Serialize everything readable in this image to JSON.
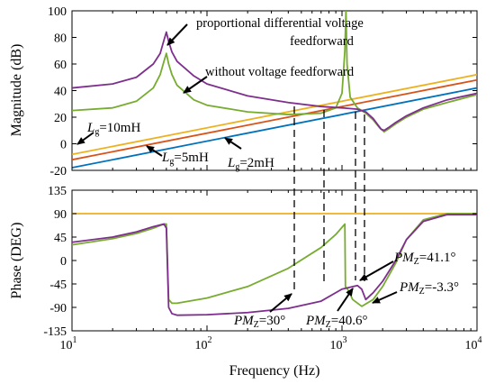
{
  "chart_data": [
    {
      "type": "line",
      "ylabel": "Magnitude (dB)",
      "x_scale": "log",
      "xlim": [
        10,
        10000
      ],
      "ylim": [
        -20,
        100
      ],
      "yticks": [
        "-20",
        "0",
        "20",
        "40",
        "60",
        "80",
        "100"
      ],
      "grid": false,
      "series": [
        {
          "color": "#7e2f8e",
          "points": [
            [
              10,
              42
            ],
            [
              20,
              45
            ],
            [
              30,
              50
            ],
            [
              40,
              60
            ],
            [
              45,
              68
            ],
            [
              48,
              78
            ],
            [
              50,
              84
            ],
            [
              52,
              77
            ],
            [
              55,
              69
            ],
            [
              60,
              62
            ],
            [
              80,
              51
            ],
            [
              100,
              45
            ],
            [
              200,
              36
            ],
            [
              400,
              31
            ],
            [
              700,
              28
            ],
            [
              1000,
              27
            ],
            [
              1300,
              26
            ],
            [
              1500,
              24
            ],
            [
              1700,
              19
            ],
            [
              1850,
              14
            ],
            [
              1950,
              11
            ],
            [
              2050,
              10
            ],
            [
              2200,
              12
            ],
            [
              2500,
              16
            ],
            [
              3000,
              21
            ],
            [
              4000,
              27
            ],
            [
              6000,
              33
            ],
            [
              10000,
              38
            ]
          ]
        },
        {
          "color": "#77ac30",
          "points": [
            [
              10,
              25
            ],
            [
              20,
              27
            ],
            [
              30,
              32
            ],
            [
              40,
              42
            ],
            [
              45,
              52
            ],
            [
              48,
              62
            ],
            [
              50,
              68
            ],
            [
              52,
              60
            ],
            [
              55,
              52
            ],
            [
              60,
              44
            ],
            [
              80,
              33
            ],
            [
              100,
              29
            ],
            [
              200,
              24
            ],
            [
              400,
              22
            ],
            [
              700,
              23
            ],
            [
              900,
              27
            ],
            [
              1000,
              38
            ],
            [
              1050,
              70
            ],
            [
              1070,
              100
            ],
            [
              1090,
              60
            ],
            [
              1150,
              35
            ],
            [
              1300,
              27
            ],
            [
              1500,
              23
            ],
            [
              1700,
              18
            ],
            [
              1900,
              12
            ],
            [
              2050,
              9
            ],
            [
              2200,
              11
            ],
            [
              2500,
              15
            ],
            [
              3000,
              20
            ],
            [
              4000,
              26
            ],
            [
              6000,
              31
            ],
            [
              10000,
              37
            ]
          ]
        },
        {
          "color": "#edb120",
          "points": [
            [
              10,
              -8
            ],
            [
              10000,
              52
            ]
          ]
        },
        {
          "color": "#d95319",
          "points": [
            [
              10,
              -12
            ],
            [
              10000,
              48
            ]
          ]
        },
        {
          "color": "#0072bd",
          "points": [
            [
              10,
              -18
            ],
            [
              10000,
              42
            ]
          ]
        }
      ],
      "annotations": [
        {
          "text": "proportional differential voltage",
          "text2": "feedforward"
        },
        {
          "text": "without voltage feedforward"
        },
        {
          "var": "L",
          "sub": "g",
          "text": "=10mH"
        },
        {
          "var": "L",
          "sub": "g",
          "text": "=5mH"
        },
        {
          "var": "L",
          "sub": "g",
          "text": "=2mH"
        }
      ]
    },
    {
      "type": "line",
      "xlabel": "Frequency (Hz)",
      "ylabel": "Phase (DEG)",
      "x_scale": "log",
      "xlim": [
        10,
        10000
      ],
      "ylim": [
        -135,
        135
      ],
      "xticks": [
        "10",
        "10",
        "10",
        "10"
      ],
      "xtick_exponents": [
        "1",
        "2",
        "3",
        "4"
      ],
      "yticks": [
        "-135",
        "-90",
        "-45",
        "0",
        "45",
        "90",
        "135"
      ],
      "grid": false,
      "series": [
        {
          "color": "#7e2f8e",
          "points": [
            [
              10,
              35
            ],
            [
              20,
              45
            ],
            [
              30,
              55
            ],
            [
              40,
              65
            ],
            [
              48,
              70
            ],
            [
              50,
              62
            ],
            [
              52,
              -90
            ],
            [
              55,
              -102
            ],
            [
              60,
              -105
            ],
            [
              100,
              -104
            ],
            [
              200,
              -100
            ],
            [
              400,
              -92
            ],
            [
              700,
              -78
            ],
            [
              1000,
              -55
            ],
            [
              1300,
              -48
            ],
            [
              1400,
              -55
            ],
            [
              1500,
              -75
            ],
            [
              1700,
              -62
            ],
            [
              2000,
              -40
            ],
            [
              2500,
              0
            ],
            [
              3000,
              40
            ],
            [
              4000,
              75
            ],
            [
              6000,
              88
            ],
            [
              10000,
              88
            ]
          ]
        },
        {
          "color": "#77ac30",
          "points": [
            [
              10,
              30
            ],
            [
              20,
              42
            ],
            [
              30,
              52
            ],
            [
              40,
              62
            ],
            [
              48,
              70
            ],
            [
              50,
              70
            ],
            [
              52,
              -75
            ],
            [
              55,
              -82
            ],
            [
              60,
              -82
            ],
            [
              100,
              -72
            ],
            [
              200,
              -50
            ],
            [
              400,
              -15
            ],
            [
              700,
              25
            ],
            [
              900,
              50
            ],
            [
              1050,
              70
            ],
            [
              1060,
              -50
            ],
            [
              1100,
              -55
            ],
            [
              1200,
              -75
            ],
            [
              1400,
              -88
            ],
            [
              1700,
              -75
            ],
            [
              2000,
              -50
            ],
            [
              2500,
              -5
            ],
            [
              3000,
              40
            ],
            [
              4000,
              78
            ],
            [
              6000,
              90
            ],
            [
              10000,
              90
            ]
          ]
        },
        {
          "color": "#edb120",
          "points": [
            [
              10,
              90
            ],
            [
              10000,
              90
            ]
          ]
        }
      ],
      "annotations": [
        {
          "var": "PM",
          "sub": "Z",
          "text": "=30°"
        },
        {
          "var": "PM",
          "sub": "Z",
          "text": "=40.6°"
        },
        {
          "var": "PM",
          "sub": "Z",
          "text": "=41.1°"
        },
        {
          "var": "PM",
          "sub": "Z",
          "text": "=-3.3°"
        }
      ]
    }
  ]
}
